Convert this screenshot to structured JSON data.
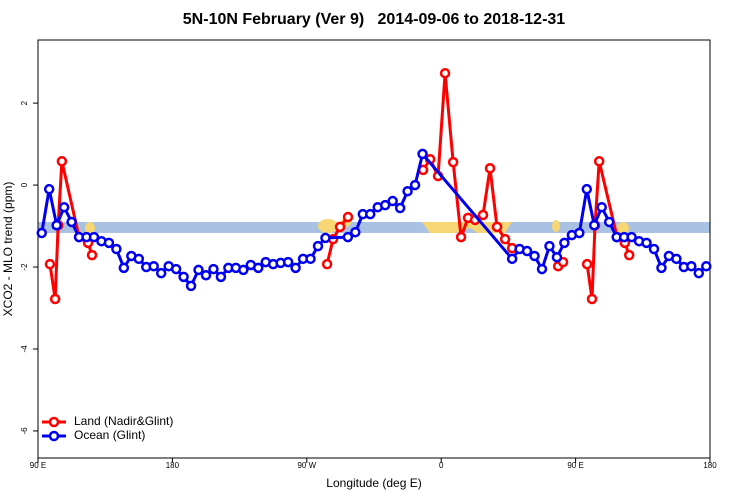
{
  "chart_data": {
    "type": "line",
    "title": "5N-10N February (Ver 9)   2014-09-06 to 2018-12-31",
    "x_label": "Longitude (deg E)",
    "y_label": "XCO2 - MLO trend (ppm)",
    "xlim": [
      90,
      540
    ],
    "ylim": [
      -6.66,
      3.54
    ],
    "xticks": [
      {
        "value": 90,
        "label": "90 E"
      },
      180,
      {
        "value": 270,
        "label": "90 W"
      },
      {
        "value": 360,
        "label": "0"
      },
      {
        "value": 450,
        "label": "90 E"
      },
      {
        "value": 540,
        "label": "180"
      }
    ],
    "yticks": [
      -6,
      -4,
      -2,
      0,
      2
    ],
    "legend": "bottom-left",
    "series": [
      {
        "name": "Land (Nadir&Glint)",
        "color": "#ff0000",
        "x": [
          98,
          101.5,
          103.5,
          106,
          117.5,
          123.5,
          126.2,
          null,
          283.6,
          287.6,
          292.3,
          297.6,
          null,
          347.9,
          352.6,
          357.9,
          362.6,
          368,
          373.3,
          378,
          382.7,
          388,
          392.7,
          397.4,
          402.8,
          407.5,
          null,
          438.3,
          441.6,
          null,
          457.7,
          461,
          463,
          465.8,
          477.8,
          483,
          485.9
        ],
        "values": [
          -1.93,
          -2.78,
          -0.98,
          0.58,
          -1.27,
          -1.41,
          -1.71,
          null,
          -1.93,
          -1.32,
          -1.02,
          -0.78,
          null,
          0.37,
          0.63,
          0.22,
          2.73,
          0.56,
          -1.27,
          -0.8,
          -0.85,
          -0.73,
          0.41,
          -1.02,
          -1.32,
          -1.54,
          null,
          -1.98,
          -1.88,
          null,
          -1.93,
          -2.78,
          -0.98,
          0.58,
          -1.27,
          -1.41,
          -1.71
        ]
      },
      {
        "name": "Ocean (Glint)",
        "color": "#0000ee",
        "x": [
          92.5,
          97.5,
          102.5,
          107.5,
          112.5,
          117.5,
          122.5,
          127.5,
          132.5,
          137.5,
          142.5,
          147.5,
          152.5,
          157.5,
          162.5,
          167.5,
          172.5,
          177.5,
          182.5,
          187.5,
          192.5,
          197.5,
          202.5,
          207.5,
          212.5,
          217.5,
          222.5,
          227.5,
          232.5,
          237.5,
          242.5,
          247.5,
          252.5,
          257.5,
          262.5,
          267.5,
          272.5,
          277.5,
          282.5,
          297.5,
          302.5,
          307.5,
          312.5,
          317.5,
          322.5,
          327.5,
          332.5,
          337.5,
          342.5,
          347.5,
          407.5,
          412.5,
          417.5,
          422.5,
          427.5,
          432.5,
          437.5,
          442.5,
          447.5,
          452.5,
          457.5,
          462.5,
          467.5,
          472.5,
          477.5,
          482.5,
          487.5,
          492.5,
          497.5,
          502.5,
          507.5,
          512.5,
          517.5,
          522.5,
          527.5,
          532.5,
          537.5
        ],
        "values": [
          -1.17,
          -0.1,
          -0.98,
          -0.54,
          -0.9,
          -1.27,
          -1.27,
          -1.27,
          -1.37,
          -1.41,
          -1.56,
          -2.02,
          -1.73,
          -1.8,
          -2.0,
          -1.98,
          -2.15,
          -1.98,
          -2.05,
          -2.24,
          -2.46,
          -2.07,
          -2.2,
          -2.05,
          -2.24,
          -2.02,
          -2.02,
          -2.07,
          -1.95,
          -2.02,
          -1.88,
          -1.93,
          -1.9,
          -1.88,
          -2.02,
          -1.8,
          -1.8,
          -1.49,
          -1.29,
          -1.27,
          -1.15,
          -0.71,
          -0.71,
          -0.54,
          -0.49,
          -0.39,
          -0.56,
          -0.15,
          0.0,
          0.76,
          -1.8,
          -1.56,
          -1.61,
          -1.73,
          -2.05,
          -1.49,
          -1.76,
          -1.41,
          -1.22,
          -1.17,
          -0.1,
          -0.98,
          -0.54,
          -0.9,
          -1.27,
          -1.27,
          -1.27,
          -1.37,
          -1.41,
          -1.56,
          -2.02,
          -1.73,
          -1.8,
          -2.0,
          -1.98,
          -2.15,
          -1.98
        ]
      }
    ]
  }
}
